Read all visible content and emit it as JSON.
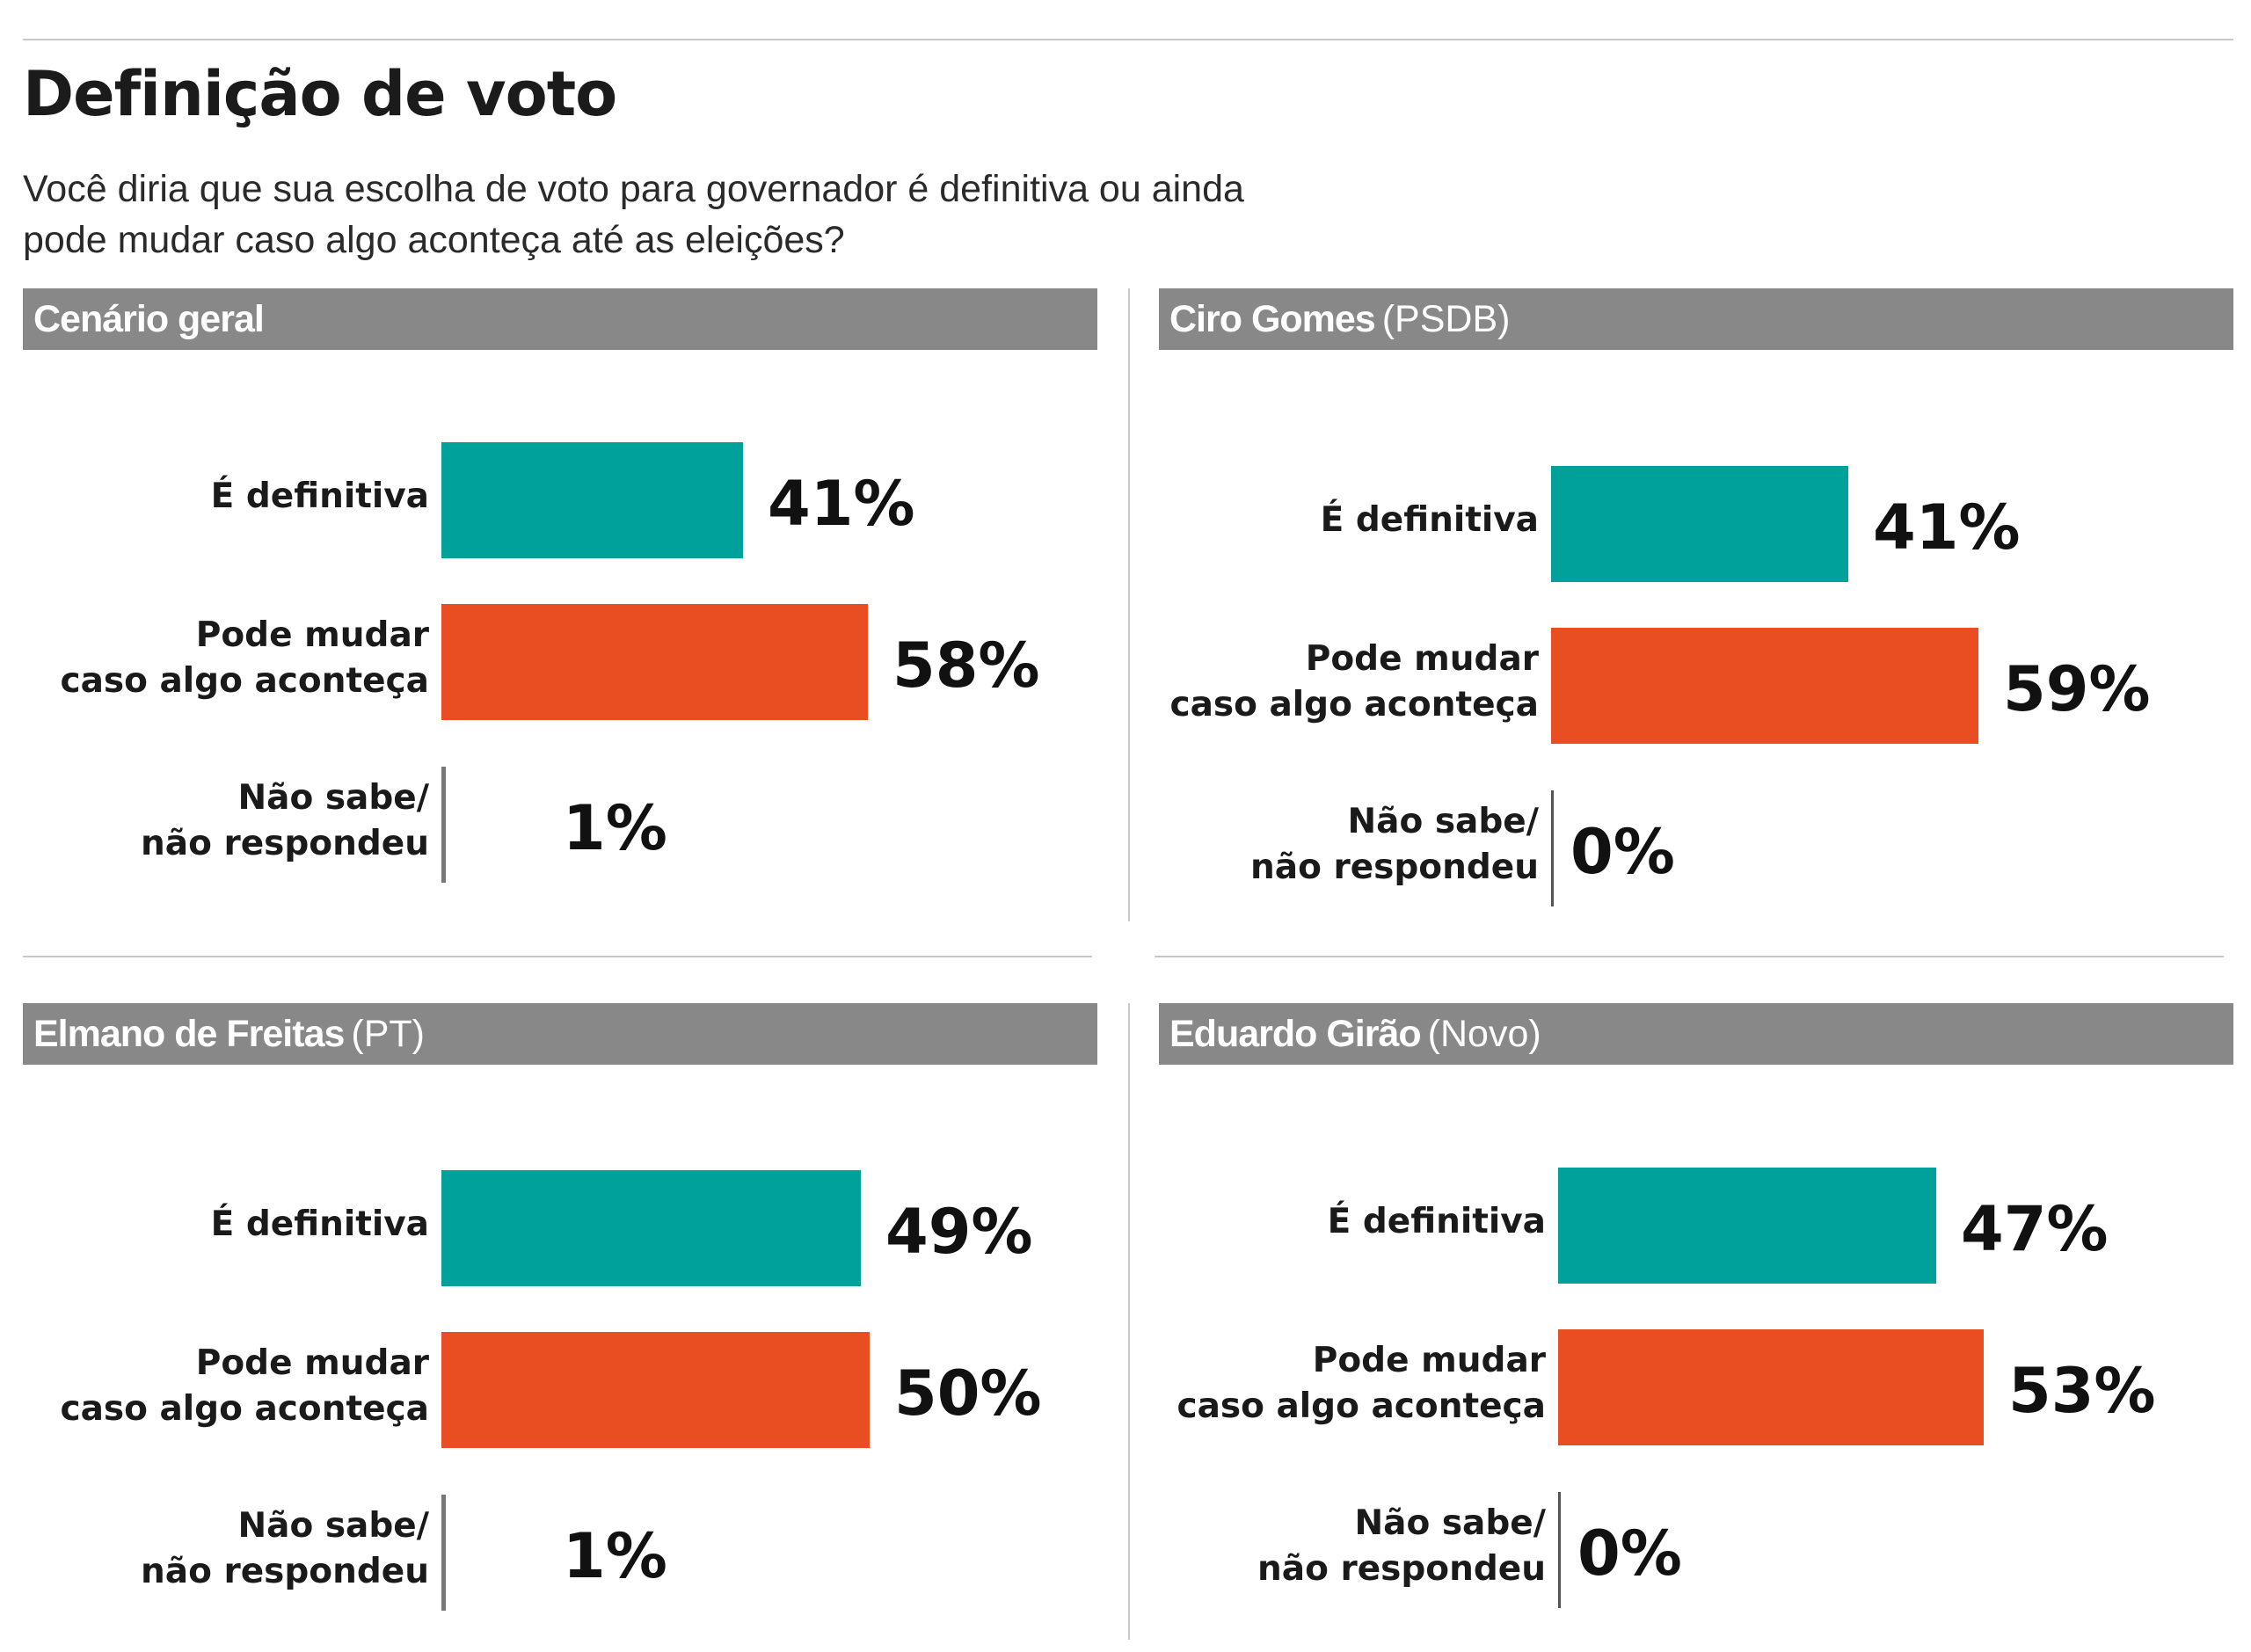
{
  "title": "Definição de voto",
  "subtitle": "Você diria que sua escolha de voto para governador é definitiva ou ainda pode mudar caso algo aconteça até as eleições?",
  "colors": {
    "definitiva": "#00A19A",
    "pode_mudar": "#E84E21",
    "nao_sabe": "#777777",
    "header_bg": "#888888"
  },
  "chart_data": [
    {
      "type": "bar",
      "title": "Cenário geral",
      "party": "",
      "categories": [
        "É definitiva",
        "Pode mudar\ncaso algo aconteça",
        "Não sabe/\nnão respondeu"
      ],
      "values": [
        41,
        58,
        1
      ],
      "value_labels": [
        "41%",
        "58%",
        "1%"
      ],
      "unit": "%"
    },
    {
      "type": "bar",
      "title": "Ciro Gomes",
      "party": "(PSDB)",
      "categories": [
        "É definitiva",
        "Pode mudar\ncaso algo aconteça",
        "Não sabe/\nnão respondeu"
      ],
      "values": [
        41,
        59,
        0
      ],
      "value_labels": [
        "41%",
        "59%",
        "0%"
      ],
      "unit": "%"
    },
    {
      "type": "bar",
      "title": "Elmano de Freitas",
      "party": "(PT)",
      "categories": [
        "É definitiva",
        "Pode mudar\ncaso algo aconteça",
        "Não sabe/\nnão respondeu"
      ],
      "values": [
        49,
        50,
        1
      ],
      "value_labels": [
        "49%",
        "50%",
        "1%"
      ],
      "unit": "%"
    },
    {
      "type": "bar",
      "title": "Eduardo Girão",
      "party": "(Novo)",
      "categories": [
        "É definitiva",
        "Pode mudar\ncaso algo aconteça",
        "Não sabe/\nnão respondeu"
      ],
      "values": [
        47,
        53,
        0
      ],
      "value_labels": [
        "47%",
        "53%",
        "0%"
      ],
      "unit": "%"
    }
  ]
}
